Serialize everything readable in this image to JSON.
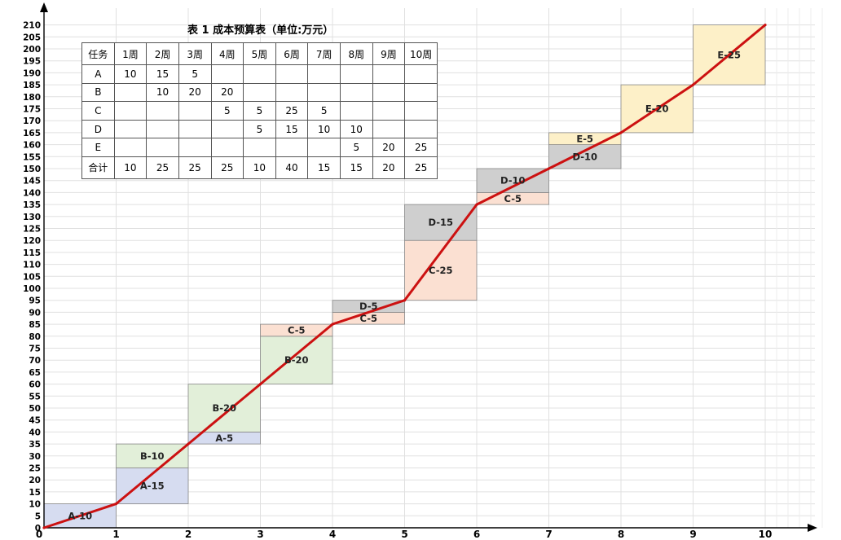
{
  "table": {
    "title": "表 1  成本预算表（单位:万元）",
    "header": [
      "任务",
      "1周",
      "2周",
      "3周",
      "4周",
      "5周",
      "6周",
      "7周",
      "8周",
      "9周",
      "10周"
    ],
    "rows": [
      [
        "A",
        "10",
        "15",
        "5",
        "",
        "",
        "",
        "",
        "",
        "",
        ""
      ],
      [
        "B",
        "",
        "10",
        "20",
        "20",
        "",
        "",
        "",
        "",
        "",
        ""
      ],
      [
        "C",
        "",
        "",
        "",
        "5",
        "5",
        "25",
        "5",
        "",
        "",
        ""
      ],
      [
        "D",
        "",
        "",
        "",
        "",
        "5",
        "15",
        "10",
        "10",
        "",
        ""
      ],
      [
        "E",
        "",
        "",
        "",
        "",
        "",
        "",
        "",
        "5",
        "20",
        "25"
      ],
      [
        "合计",
        "10",
        "25",
        "25",
        "25",
        "10",
        "40",
        "15",
        "15",
        "20",
        "25"
      ]
    ]
  },
  "chart_data": {
    "type": "line",
    "title": "",
    "xlabel": "",
    "ylabel": "",
    "xlim": [
      0,
      10
    ],
    "ylim": [
      0,
      210
    ],
    "x_ticks": [
      "0",
      "1",
      "2",
      "3",
      "4",
      "5",
      "6",
      "7",
      "8",
      "9",
      "10"
    ],
    "y_ticks": [
      "0",
      "5",
      "10",
      "15",
      "20",
      "25",
      "30",
      "35",
      "40",
      "45",
      "50",
      "55",
      "60",
      "65",
      "70",
      "75",
      "80",
      "85",
      "90",
      "95",
      "100",
      "105",
      "110",
      "115",
      "120",
      "125",
      "130",
      "135",
      "140",
      "145",
      "150",
      "155",
      "160",
      "165",
      "170",
      "175",
      "180",
      "185",
      "190",
      "195",
      "200",
      "205",
      "210"
    ],
    "grid": true,
    "series": [
      {
        "color": "#cc1111",
        "x": [
          0,
          1,
          2,
          3,
          4,
          5,
          6,
          7,
          8,
          9,
          10
        ],
        "y": [
          0,
          10,
          35,
          60,
          85,
          95,
          135,
          150,
          165,
          185,
          210
        ]
      }
    ],
    "blocks": [
      {
        "label": "A-10",
        "week": 1,
        "start": 0,
        "value": 10,
        "color": "#d6dcf0"
      },
      {
        "label": "A-15",
        "week": 2,
        "start": 10,
        "value": 15,
        "color": "#d6dcf0"
      },
      {
        "label": "B-10",
        "week": 2,
        "start": 25,
        "value": 10,
        "color": "#e2efd9"
      },
      {
        "label": "A-5",
        "week": 3,
        "start": 35,
        "value": 5,
        "color": "#d6dcf0"
      },
      {
        "label": "B-20",
        "week": 3,
        "start": 40,
        "value": 20,
        "color": "#e2efd9"
      },
      {
        "label": "B-20",
        "week": 4,
        "start": 60,
        "value": 20,
        "color": "#e2efd9"
      },
      {
        "label": "C-5",
        "week": 4,
        "start": 80,
        "value": 5,
        "color": "#fbe0d2"
      },
      {
        "label": "C-5",
        "week": 5,
        "start": 85,
        "value": 5,
        "color": "#fbe0d2"
      },
      {
        "label": "D-5",
        "week": 5,
        "start": 90,
        "value": 5,
        "color": "#cfcfcf"
      },
      {
        "label": "C-25",
        "week": 6,
        "start": 95,
        "value": 25,
        "color": "#fbe0d2"
      },
      {
        "label": "D-15",
        "week": 6,
        "start": 120,
        "value": 15,
        "color": "#cfcfcf"
      },
      {
        "label": "C-5",
        "week": 7,
        "start": 135,
        "value": 5,
        "color": "#fbe0d2"
      },
      {
        "label": "D-10",
        "week": 7,
        "start": 140,
        "value": 10,
        "color": "#cfcfcf"
      },
      {
        "label": "D-10",
        "week": 8,
        "start": 150,
        "value": 10,
        "color": "#cfcfcf"
      },
      {
        "label": "E-5",
        "week": 8,
        "start": 160,
        "value": 5,
        "color": "#fdf0c8"
      },
      {
        "label": "E-20",
        "week": 9,
        "start": 165,
        "value": 20,
        "color": "#fdf0c8"
      },
      {
        "label": "E-25",
        "week": 10,
        "start": 185,
        "value": 25,
        "color": "#fdf0c8"
      }
    ]
  }
}
